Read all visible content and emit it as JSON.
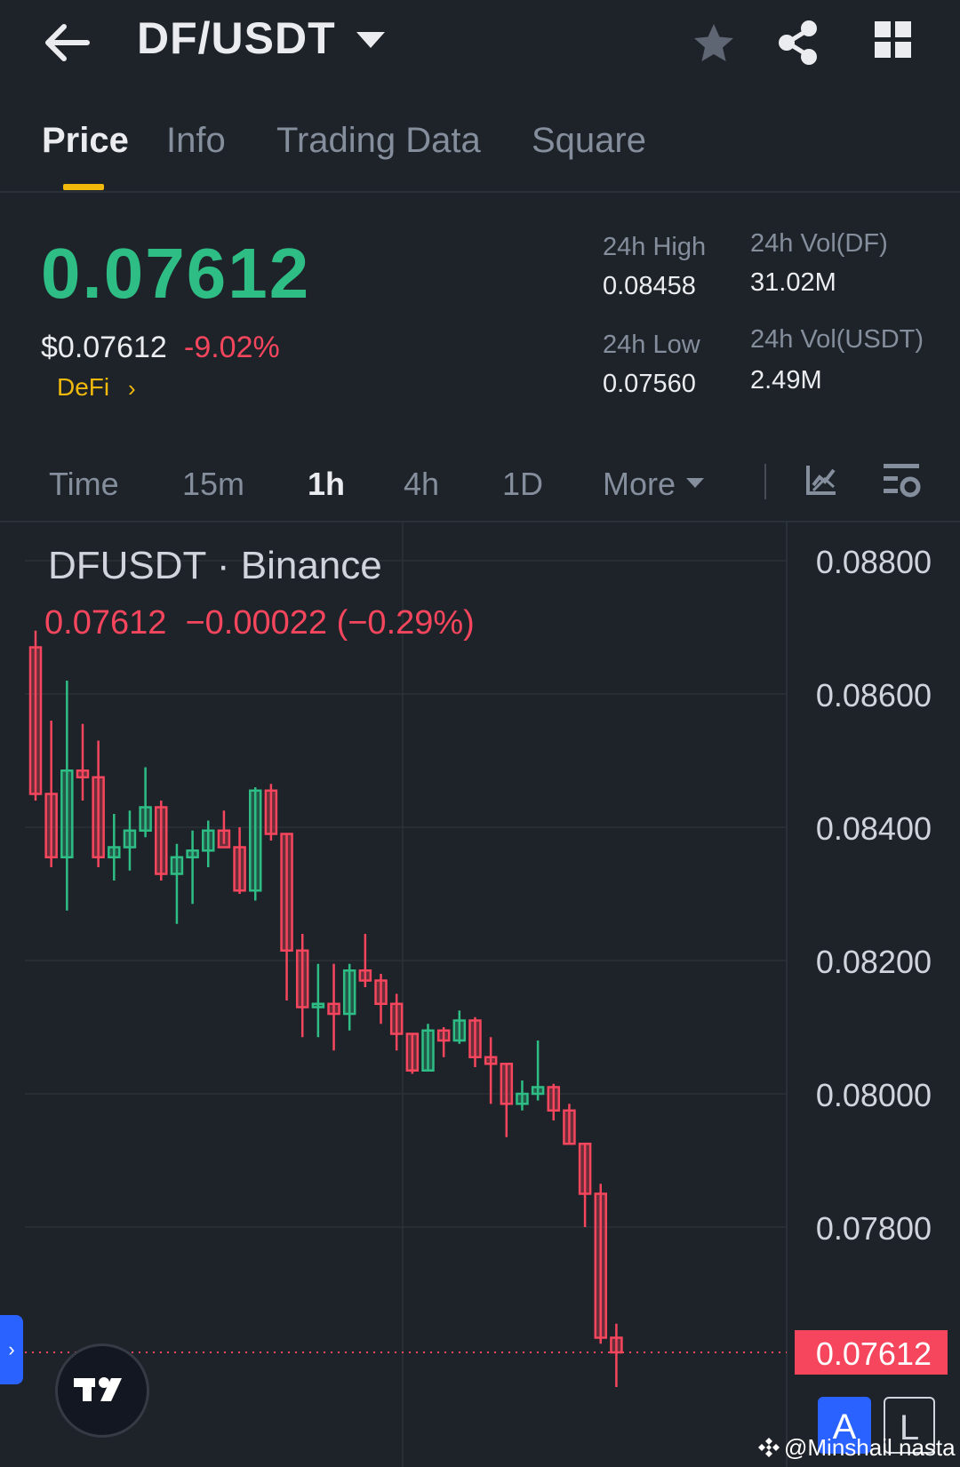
{
  "header": {
    "pair": "DF/USDT"
  },
  "tabs": [
    {
      "label": "Price",
      "active": true
    },
    {
      "label": "Info",
      "active": false
    },
    {
      "label": "Trading Data",
      "active": false
    },
    {
      "label": "Square",
      "active": false
    }
  ],
  "price": {
    "last": "0.07612",
    "usd": "$0.07612",
    "change_pct": "-9.02%",
    "sector": "DeFi"
  },
  "stats": {
    "high_label": "24h High",
    "high_value": "0.08458",
    "low_label": "24h Low",
    "low_value": "0.07560",
    "vol_base_label": "24h Vol(DF)",
    "vol_base_value": "31.02M",
    "vol_quote_label": "24h Vol(USDT)",
    "vol_quote_value": "2.49M"
  },
  "intervals": [
    {
      "label": "Time",
      "active": false
    },
    {
      "label": "15m",
      "active": false
    },
    {
      "label": "1h",
      "active": true
    },
    {
      "label": "4h",
      "active": false
    },
    {
      "label": "1D",
      "active": false
    },
    {
      "label": "More",
      "active": false
    }
  ],
  "chart_header": {
    "symbol_line": "DFUSDT · Binance",
    "ohlc_line": "0.07612  −0.00022 (−0.29%)"
  },
  "chart_data": {
    "type": "candlestick",
    "yticks": [
      "0.08800",
      "0.08600",
      "0.08400",
      "0.08200",
      "0.08000",
      "0.07800"
    ],
    "ylim": [
      0.0765,
      0.0885
    ],
    "last_price_label": "0.07612",
    "colors": {
      "up": "#2ebd85",
      "down": "#f6465d"
    },
    "candles": [
      {
        "o": 0.0867,
        "h": 0.08695,
        "l": 0.0844,
        "c": 0.0845
      },
      {
        "o": 0.0845,
        "h": 0.0856,
        "l": 0.0834,
        "c": 0.08355
      },
      {
        "o": 0.08355,
        "h": 0.0862,
        "l": 0.08275,
        "c": 0.08485
      },
      {
        "o": 0.08485,
        "h": 0.08555,
        "l": 0.0844,
        "c": 0.08475
      },
      {
        "o": 0.08475,
        "h": 0.0853,
        "l": 0.0834,
        "c": 0.08355
      },
      {
        "o": 0.08355,
        "h": 0.0842,
        "l": 0.0832,
        "c": 0.0837
      },
      {
        "o": 0.0837,
        "h": 0.08425,
        "l": 0.08335,
        "c": 0.08395
      },
      {
        "o": 0.08395,
        "h": 0.0849,
        "l": 0.08385,
        "c": 0.0843
      },
      {
        "o": 0.0843,
        "h": 0.0844,
        "l": 0.0832,
        "c": 0.0833
      },
      {
        "o": 0.0833,
        "h": 0.08375,
        "l": 0.08255,
        "c": 0.08355
      },
      {
        "o": 0.08355,
        "h": 0.08395,
        "l": 0.08285,
        "c": 0.08365
      },
      {
        "o": 0.08365,
        "h": 0.0841,
        "l": 0.0834,
        "c": 0.08395
      },
      {
        "o": 0.08395,
        "h": 0.08425,
        "l": 0.08375,
        "c": 0.0837
      },
      {
        "o": 0.0837,
        "h": 0.084,
        "l": 0.083,
        "c": 0.08305
      },
      {
        "o": 0.08305,
        "h": 0.0846,
        "l": 0.0829,
        "c": 0.08455
      },
      {
        "o": 0.08455,
        "h": 0.08465,
        "l": 0.0838,
        "c": 0.0839
      },
      {
        "o": 0.0839,
        "h": 0.0839,
        "l": 0.0814,
        "c": 0.08215
      },
      {
        "o": 0.08215,
        "h": 0.0824,
        "l": 0.08085,
        "c": 0.0813
      },
      {
        "o": 0.0813,
        "h": 0.08195,
        "l": 0.08085,
        "c": 0.08135
      },
      {
        "o": 0.08135,
        "h": 0.08195,
        "l": 0.08065,
        "c": 0.0812
      },
      {
        "o": 0.0812,
        "h": 0.08195,
        "l": 0.08095,
        "c": 0.08185
      },
      {
        "o": 0.08185,
        "h": 0.0824,
        "l": 0.0816,
        "c": 0.0817
      },
      {
        "o": 0.0817,
        "h": 0.0818,
        "l": 0.08105,
        "c": 0.08135
      },
      {
        "o": 0.08135,
        "h": 0.0815,
        "l": 0.08065,
        "c": 0.0809
      },
      {
        "o": 0.0809,
        "h": 0.0809,
        "l": 0.0803,
        "c": 0.08035
      },
      {
        "o": 0.08035,
        "h": 0.08105,
        "l": 0.08035,
        "c": 0.08095
      },
      {
        "o": 0.08095,
        "h": 0.081,
        "l": 0.08055,
        "c": 0.0808
      },
      {
        "o": 0.0808,
        "h": 0.08125,
        "l": 0.08075,
        "c": 0.0811
      },
      {
        "o": 0.0811,
        "h": 0.08115,
        "l": 0.0804,
        "c": 0.08055
      },
      {
        "o": 0.08055,
        "h": 0.08085,
        "l": 0.07985,
        "c": 0.08045
      },
      {
        "o": 0.08045,
        "h": 0.08045,
        "l": 0.07935,
        "c": 0.07985
      },
      {
        "o": 0.07985,
        "h": 0.0802,
        "l": 0.07975,
        "c": 0.08
      },
      {
        "o": 0.08,
        "h": 0.0808,
        "l": 0.0799,
        "c": 0.0801
      },
      {
        "o": 0.0801,
        "h": 0.08015,
        "l": 0.0796,
        "c": 0.07975
      },
      {
        "o": 0.07975,
        "h": 0.07985,
        "l": 0.07925,
        "c": 0.07925
      },
      {
        "o": 0.07925,
        "h": 0.07925,
        "l": 0.078,
        "c": 0.0785
      },
      {
        "o": 0.0785,
        "h": 0.07865,
        "l": 0.07625,
        "c": 0.07634
      },
      {
        "o": 0.07634,
        "h": 0.07655,
        "l": 0.0756,
        "c": 0.07612
      }
    ]
  }
}
